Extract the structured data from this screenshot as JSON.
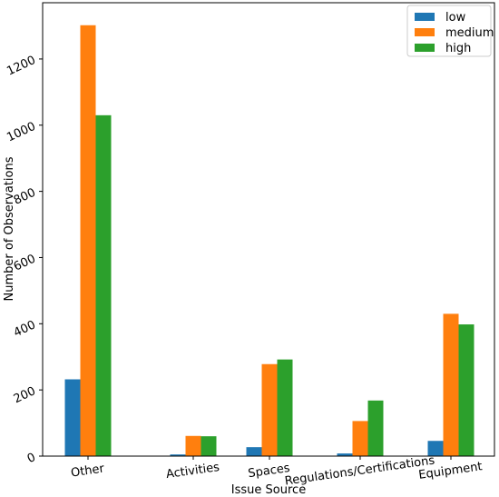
{
  "chart_data": {
    "type": "bar",
    "title": "",
    "xlabel": "Issue Source",
    "ylabel": "Number of Observations",
    "categories": [
      "Other",
      "Activities",
      "Spaces",
      "Regulations/Certifications",
      "Equipment"
    ],
    "series": [
      {
        "name": "low",
        "color": "#1f77b4",
        "values": [
          232,
          5,
          27,
          8,
          46
        ]
      },
      {
        "name": "medium",
        "color": "#ff7f0e",
        "values": [
          1302,
          61,
          278,
          106,
          430
        ]
      },
      {
        "name": "high",
        "color": "#2ca02c",
        "values": [
          1030,
          60,
          292,
          168,
          398
        ]
      }
    ],
    "ylim": [
      0,
      1370
    ],
    "yticks": [
      0,
      200,
      400,
      600,
      800,
      1000,
      1200
    ],
    "grid": false,
    "legend_position": "top-right"
  }
}
